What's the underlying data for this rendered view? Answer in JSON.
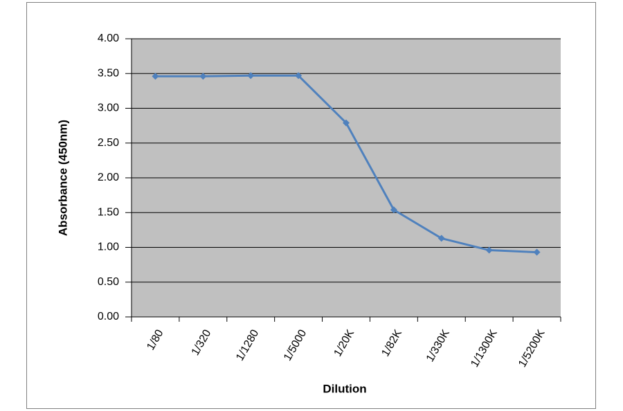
{
  "chart_data": {
    "type": "line",
    "x_label": "Dilution",
    "y_label": "Absorbance (450nm)",
    "categories": [
      "1/80",
      "1/320",
      "1/1280",
      "1/5000",
      "1/20K",
      "1/82K",
      "1/330K",
      "1/1300K",
      "1/5200K"
    ],
    "series": [
      {
        "color": "#4f81bd",
        "values": [
          3.46,
          3.46,
          3.47,
          3.47,
          2.79,
          1.54,
          1.13,
          0.96,
          0.93
        ]
      }
    ],
    "ylim": [
      0,
      4
    ],
    "yticks": [
      {
        "value": 0,
        "label": "0.00"
      },
      {
        "value": 0.5,
        "label": "0.50"
      },
      {
        "value": 1,
        "label": "1.00"
      },
      {
        "value": 1.5,
        "label": "1.50"
      },
      {
        "value": 2,
        "label": "2.00"
      },
      {
        "value": 2.5,
        "label": "2.50"
      },
      {
        "value": 3,
        "label": "3.00"
      },
      {
        "value": 3.5,
        "label": "3.50"
      },
      {
        "value": 4,
        "label": "4.00"
      }
    ],
    "grid": true,
    "plot_background": "#c0c0c0"
  }
}
